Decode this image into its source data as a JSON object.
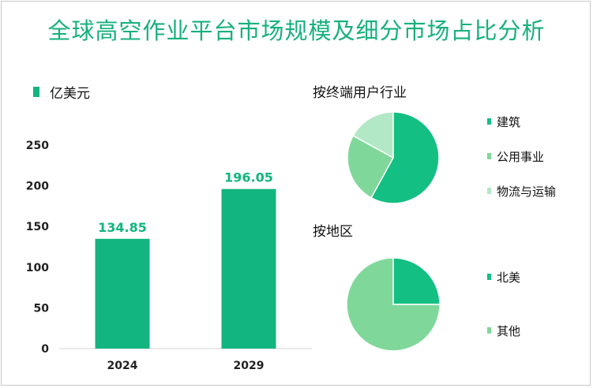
{
  "title": "全球高空作业平台市场规模及细分市场占比分析",
  "colors": {
    "title": "#17b07e",
    "bar": "#12b57f",
    "pie_dark": "#13bf82",
    "pie_mid": "#7fd89a",
    "pie_light": "#b2e8c5"
  },
  "chart_data": [
    {
      "type": "bar",
      "unit_legend": "亿美元",
      "categories": [
        "2024",
        "2029"
      ],
      "values": [
        134.85,
        196.05
      ],
      "value_labels": [
        "134.85",
        "196.05"
      ],
      "ylim": [
        0,
        250
      ],
      "yticks": [
        0,
        50,
        100,
        150,
        200,
        250
      ],
      "grid": false
    },
    {
      "type": "pie",
      "title": "按终端用户行业",
      "labels": [
        "建筑",
        "公用事业",
        "物流与运输"
      ],
      "values": [
        58,
        25,
        17
      ]
    },
    {
      "type": "pie",
      "title": "按地区",
      "labels": [
        "北美",
        "其他"
      ],
      "values": [
        25,
        75
      ]
    }
  ]
}
